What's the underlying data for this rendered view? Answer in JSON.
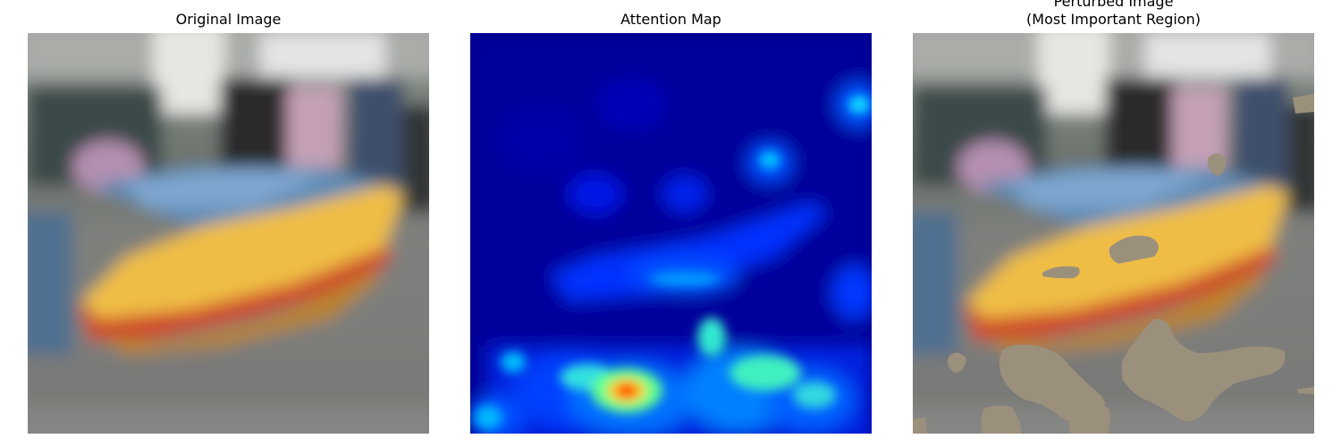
{
  "figure": {
    "panels": [
      {
        "title": "Original Image",
        "kind": "photo"
      },
      {
        "title": "Attention Map",
        "kind": "heatmap",
        "colormap": "jet"
      },
      {
        "title": "Perturbed Image\n(Most Important Region)",
        "kind": "photo-masked",
        "mask_color": "#9b907c"
      }
    ]
  },
  "colors": {
    "road": "#7d7d7b",
    "boat_yellow": "#f0be48",
    "boat_red": "#d24c2c",
    "jet_low": "#00008f",
    "jet_high": "#ff0000"
  }
}
